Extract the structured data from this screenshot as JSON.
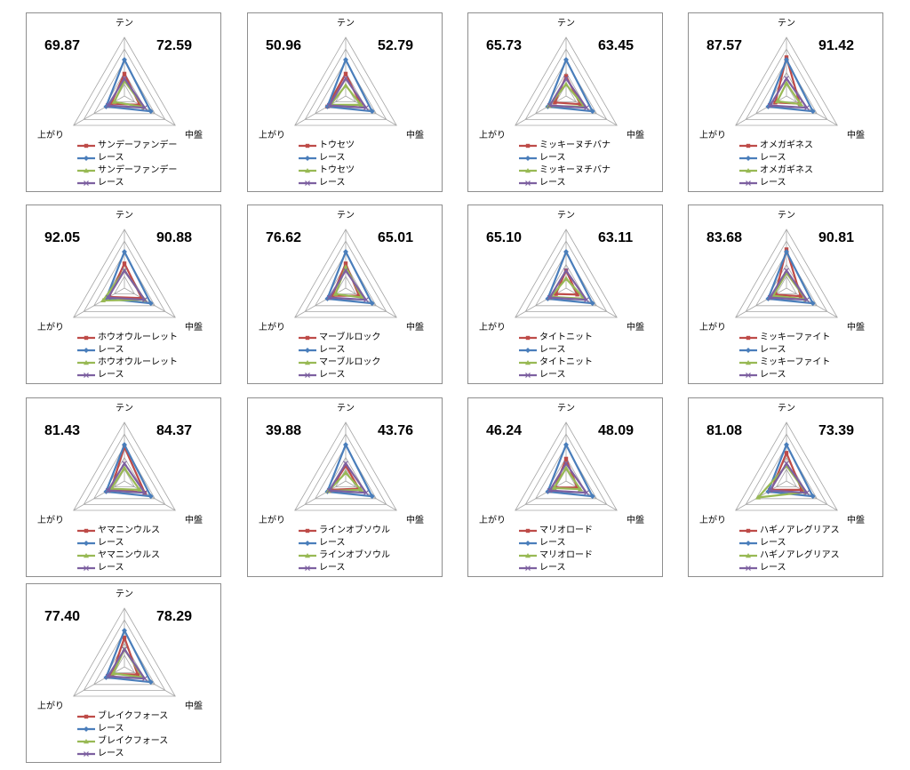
{
  "axis_labels": [
    "テン",
    "中盤",
    "上がり"
  ],
  "colors": {
    "series_red": "#be4b48",
    "series_blue": "#4a7ebb",
    "series_green": "#98b954",
    "series_purple": "#7d60a0",
    "grid": "#a6a6a6",
    "border": "#8e8e8e"
  },
  "chart_data": [
    {
      "type": "radar",
      "left_value": "69.87",
      "right_value": "72.59",
      "axes": [
        "テン",
        "中盤",
        "上がり"
      ],
      "grid_levels": 5,
      "series": [
        {
          "name": "サンデーファンデー",
          "values": [
            0.38,
            0.3,
            0.26
          ]
        },
        {
          "name": "レース",
          "values": [
            0.62,
            0.52,
            0.36
          ]
        },
        {
          "name": "サンデーファンデー",
          "values": [
            0.26,
            0.38,
            0.2
          ]
        },
        {
          "name": "レース",
          "values": [
            0.3,
            0.4,
            0.32
          ]
        }
      ]
    },
    {
      "type": "radar",
      "left_value": "50.96",
      "right_value": "52.79",
      "axes": [
        "テン",
        "中盤",
        "上がり"
      ],
      "grid_levels": 5,
      "series": [
        {
          "name": "トウセツ",
          "values": [
            0.38,
            0.3,
            0.36
          ]
        },
        {
          "name": "レース",
          "values": [
            0.62,
            0.52,
            0.36
          ]
        },
        {
          "name": "トウセツ",
          "values": [
            0.18,
            0.3,
            0.3
          ]
        },
        {
          "name": "レース",
          "values": [
            0.3,
            0.4,
            0.32
          ]
        }
      ]
    },
    {
      "type": "radar",
      "left_value": "65.73",
      "right_value": "63.45",
      "axes": [
        "テン",
        "中盤",
        "上がり"
      ],
      "grid_levels": 5,
      "series": [
        {
          "name": "ミッキーヌチバナ",
          "values": [
            0.34,
            0.28,
            0.22
          ]
        },
        {
          "name": "レース",
          "values": [
            0.62,
            0.52,
            0.36
          ]
        },
        {
          "name": "ミッキーヌチバナ",
          "values": [
            0.2,
            0.36,
            0.34
          ]
        },
        {
          "name": "レース",
          "values": [
            0.3,
            0.4,
            0.32
          ]
        }
      ]
    },
    {
      "type": "radar",
      "left_value": "87.57",
      "right_value": "91.42",
      "axes": [
        "テン",
        "中盤",
        "上がり"
      ],
      "grid_levels": 5,
      "series": [
        {
          "name": "オメガギネス",
          "values": [
            0.66,
            0.26,
            0.22
          ]
        },
        {
          "name": "レース",
          "values": [
            0.62,
            0.52,
            0.36
          ]
        },
        {
          "name": "オメガギネス",
          "values": [
            0.22,
            0.28,
            0.18
          ]
        },
        {
          "name": "レース",
          "values": [
            0.3,
            0.4,
            0.32
          ]
        }
      ]
    },
    {
      "type": "radar",
      "left_value": "92.05",
      "right_value": "90.88",
      "axes": [
        "テン",
        "中盤",
        "上がり"
      ],
      "grid_levels": 5,
      "series": [
        {
          "name": "ホウオウルーレット",
          "values": [
            0.42,
            0.34,
            0.3
          ]
        },
        {
          "name": "レース",
          "values": [
            0.62,
            0.52,
            0.36
          ]
        },
        {
          "name": "ホウオウルーレット",
          "values": [
            0.3,
            0.4,
            0.42
          ]
        },
        {
          "name": "レース",
          "values": [
            0.3,
            0.4,
            0.32
          ]
        }
      ]
    },
    {
      "type": "radar",
      "left_value": "76.62",
      "right_value": "65.01",
      "axes": [
        "テン",
        "中盤",
        "上がり"
      ],
      "grid_levels": 5,
      "series": [
        {
          "name": "マーブルロック",
          "values": [
            0.42,
            0.26,
            0.26
          ]
        },
        {
          "name": "レース",
          "values": [
            0.62,
            0.52,
            0.36
          ]
        },
        {
          "name": "マーブルロック",
          "values": [
            0.36,
            0.32,
            0.2
          ]
        },
        {
          "name": "レース",
          "values": [
            0.3,
            0.4,
            0.32
          ]
        }
      ]
    },
    {
      "type": "radar",
      "left_value": "65.10",
      "right_value": "63.11",
      "axes": [
        "テン",
        "中盤",
        "上がり"
      ],
      "grid_levels": 5,
      "series": [
        {
          "name": "タイトニット",
          "values": [
            0.3,
            0.22,
            0.2
          ]
        },
        {
          "name": "レース",
          "values": [
            0.62,
            0.52,
            0.36
          ]
        },
        {
          "name": "タイトニット",
          "values": [
            0.16,
            0.36,
            0.3
          ]
        },
        {
          "name": "レース",
          "values": [
            0.3,
            0.4,
            0.32
          ]
        }
      ]
    },
    {
      "type": "radar",
      "left_value": "83.68",
      "right_value": "90.81",
      "axes": [
        "テン",
        "中盤",
        "上がり"
      ],
      "grid_levels": 5,
      "series": [
        {
          "name": "ミッキーファイト",
          "values": [
            0.66,
            0.28,
            0.22
          ]
        },
        {
          "name": "レース",
          "values": [
            0.62,
            0.52,
            0.36
          ]
        },
        {
          "name": "ミッキーファイト",
          "values": [
            0.26,
            0.38,
            0.26
          ]
        },
        {
          "name": "レース",
          "values": [
            0.3,
            0.4,
            0.32
          ]
        }
      ]
    },
    {
      "type": "radar",
      "left_value": "81.43",
      "right_value": "84.37",
      "axes": [
        "テン",
        "中盤",
        "上がり"
      ],
      "grid_levels": 5,
      "series": [
        {
          "name": "ヤマニンウルス",
          "values": [
            0.58,
            0.4,
            0.26
          ]
        },
        {
          "name": "レース",
          "values": [
            0.62,
            0.52,
            0.36
          ]
        },
        {
          "name": "ヤマニンウルス",
          "values": [
            0.22,
            0.3,
            0.26
          ]
        },
        {
          "name": "レース",
          "values": [
            0.3,
            0.4,
            0.32
          ]
        }
      ]
    },
    {
      "type": "radar",
      "left_value": "39.88",
      "right_value": "43.76",
      "axes": [
        "テン",
        "中盤",
        "上がり"
      ],
      "grid_levels": 5,
      "series": [
        {
          "name": "ラインオブソウル",
          "values": [
            0.26,
            0.26,
            0.3
          ]
        },
        {
          "name": "レース",
          "values": [
            0.62,
            0.52,
            0.36
          ]
        },
        {
          "name": "ラインオブソウル",
          "values": [
            0.14,
            0.3,
            0.34
          ]
        },
        {
          "name": "レース",
          "values": [
            0.3,
            0.4,
            0.32
          ]
        }
      ]
    },
    {
      "type": "radar",
      "left_value": "46.24",
      "right_value": "48.09",
      "axes": [
        "テン",
        "中盤",
        "上がり"
      ],
      "grid_levels": 5,
      "series": [
        {
          "name": "マリオロード",
          "values": [
            0.38,
            0.22,
            0.22
          ]
        },
        {
          "name": "レース",
          "values": [
            0.62,
            0.52,
            0.36
          ]
        },
        {
          "name": "マリオロード",
          "values": [
            0.22,
            0.28,
            0.24
          ]
        },
        {
          "name": "レース",
          "values": [
            0.3,
            0.4,
            0.32
          ]
        }
      ]
    },
    {
      "type": "radar",
      "left_value": "81.08",
      "right_value": "73.39",
      "axes": [
        "テン",
        "中盤",
        "上がり"
      ],
      "grid_levels": 5,
      "series": [
        {
          "name": "ハギノアレグリアス",
          "values": [
            0.48,
            0.3,
            0.3
          ]
        },
        {
          "name": "レース",
          "values": [
            0.62,
            0.52,
            0.36
          ]
        },
        {
          "name": "ハギノアレグリアス",
          "values": [
            0.26,
            0.38,
            0.56
          ]
        },
        {
          "name": "レース",
          "values": [
            0.3,
            0.4,
            0.32
          ]
        }
      ]
    },
    {
      "type": "radar",
      "left_value": "77.40",
      "right_value": "78.29",
      "axes": [
        "テン",
        "中盤",
        "上がり"
      ],
      "grid_levels": 5,
      "series": [
        {
          "name": "ブレイクフォース",
          "values": [
            0.5,
            0.26,
            0.24
          ]
        },
        {
          "name": "レース",
          "values": [
            0.62,
            0.52,
            0.36
          ]
        },
        {
          "name": "ブレイクフォース",
          "values": [
            0.3,
            0.36,
            0.22
          ]
        },
        {
          "name": "レース",
          "values": [
            0.3,
            0.4,
            0.32
          ]
        }
      ]
    }
  ]
}
